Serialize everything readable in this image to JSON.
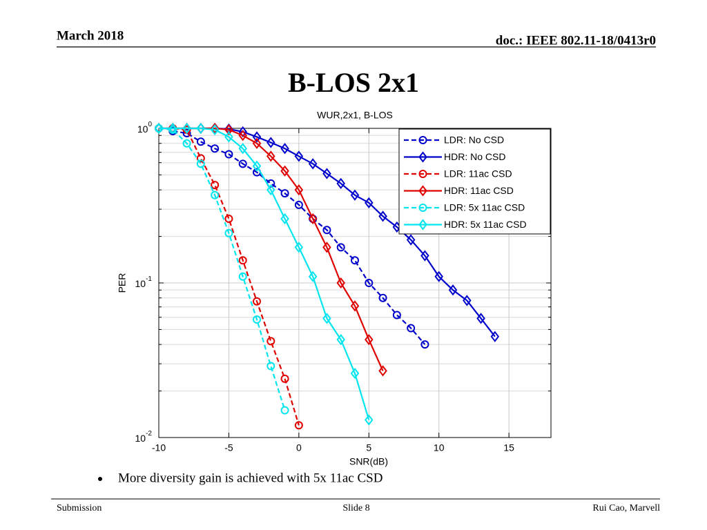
{
  "header": {
    "date": "March 2018",
    "doc": "doc.: IEEE 802.11-18/0413r0"
  },
  "slide_title": "B-LOS 2x1",
  "bullet": "More diversity gain is achieved with 5x 11ac CSD",
  "footer": {
    "left": "Submission",
    "center": "Slide 8",
    "right": "Rui Cao, Marvell"
  },
  "chart_data": {
    "type": "line",
    "title": "WUR,2x1, B-LOS",
    "x_label": "SNR(dB)",
    "y_label": "PER",
    "xlim": [
      -10,
      18
    ],
    "xticks": [
      -10,
      -5,
      0,
      5,
      10,
      15
    ],
    "ylim": [
      0.01,
      1
    ],
    "log_y": true,
    "yticks": [
      {
        "value": 1,
        "label": "10",
        "exponent": "0"
      },
      {
        "value": 0.1,
        "label": "10",
        "exponent": "-1"
      },
      {
        "value": 0.01,
        "label": "10",
        "exponent": "-2"
      }
    ],
    "yminorticks": [
      0.02,
      0.03,
      0.04,
      0.05,
      0.06,
      0.07,
      0.08,
      0.09,
      0.2,
      0.3,
      0.4,
      0.5,
      0.6,
      0.7,
      0.8,
      0.9
    ],
    "grid": true,
    "legend": "upper right",
    "series": [
      {
        "name": "LDR: No CSD",
        "color": "#0000cc",
        "dash": true,
        "marker": "circle",
        "x": [
          -9,
          -8,
          -7,
          -6,
          -5,
          -4,
          -3,
          -2,
          -1,
          0,
          1,
          2,
          3,
          4,
          5,
          6,
          7,
          8,
          9
        ],
        "values": [
          0.96,
          0.93,
          0.82,
          0.74,
          0.68,
          0.59,
          0.52,
          0.44,
          0.38,
          0.32,
          0.26,
          0.22,
          0.17,
          0.14,
          0.1,
          0.08,
          0.062,
          0.051,
          0.04
        ]
      },
      {
        "name": "HDR: No CSD",
        "color": "#0000cc",
        "dash": false,
        "marker": "diamond",
        "x": [
          -10,
          -9,
          -8,
          -7,
          -6,
          -5,
          -4,
          -3,
          -2,
          -1,
          0,
          1,
          2,
          3,
          4,
          5,
          6,
          7,
          8,
          9,
          10,
          11,
          12,
          13,
          14
        ],
        "values": [
          1,
          1,
          1,
          1,
          1,
          0.99,
          0.95,
          0.88,
          0.81,
          0.74,
          0.66,
          0.59,
          0.51,
          0.44,
          0.37,
          0.33,
          0.27,
          0.23,
          0.19,
          0.15,
          0.11,
          0.09,
          0.077,
          0.059,
          0.045
        ]
      },
      {
        "name": "LDR: 11ac CSD",
        "color": "#e00000",
        "dash": true,
        "marker": "circle",
        "x": [
          -10,
          -9,
          -8,
          -7,
          -6,
          -5,
          -4,
          -3,
          -2,
          -1,
          0
        ],
        "values": [
          1,
          1,
          0.98,
          0.64,
          0.43,
          0.26,
          0.14,
          0.076,
          0.042,
          0.024,
          0.012
        ]
      },
      {
        "name": "HDR: 11ac CSD",
        "color": "#e00000",
        "dash": false,
        "marker": "diamond",
        "x": [
          -10,
          -9,
          -8,
          -7,
          -6,
          -5,
          -4,
          -3,
          -2,
          -1,
          0,
          1,
          2,
          3,
          4,
          5,
          6
        ],
        "values": [
          1,
          1,
          1,
          1,
          1,
          0.98,
          0.9,
          0.8,
          0.66,
          0.53,
          0.4,
          0.26,
          0.17,
          0.1,
          0.071,
          0.043,
          0.027
        ]
      },
      {
        "name": "LDR: 5x 11ac CSD",
        "color": "#00e5ee",
        "dash": true,
        "marker": "circle",
        "x": [
          -10,
          -9,
          -8,
          -7,
          -6,
          -5,
          -4,
          -3,
          -2,
          -1
        ],
        "values": [
          1,
          0.98,
          0.8,
          0.59,
          0.37,
          0.21,
          0.11,
          0.058,
          0.029,
          0.015
        ]
      },
      {
        "name": "HDR: 5x 11ac CSD",
        "color": "#00e5ee",
        "dash": false,
        "marker": "diamond",
        "x": [
          -10,
          -9,
          -8,
          -7,
          -6,
          -5,
          -4,
          -3,
          -2,
          -1,
          0,
          1,
          2,
          3,
          4,
          5
        ],
        "values": [
          1,
          1,
          1,
          1,
          0.98,
          0.88,
          0.74,
          0.57,
          0.4,
          0.26,
          0.17,
          0.11,
          0.059,
          0.043,
          0.026,
          0.013
        ]
      }
    ]
  }
}
